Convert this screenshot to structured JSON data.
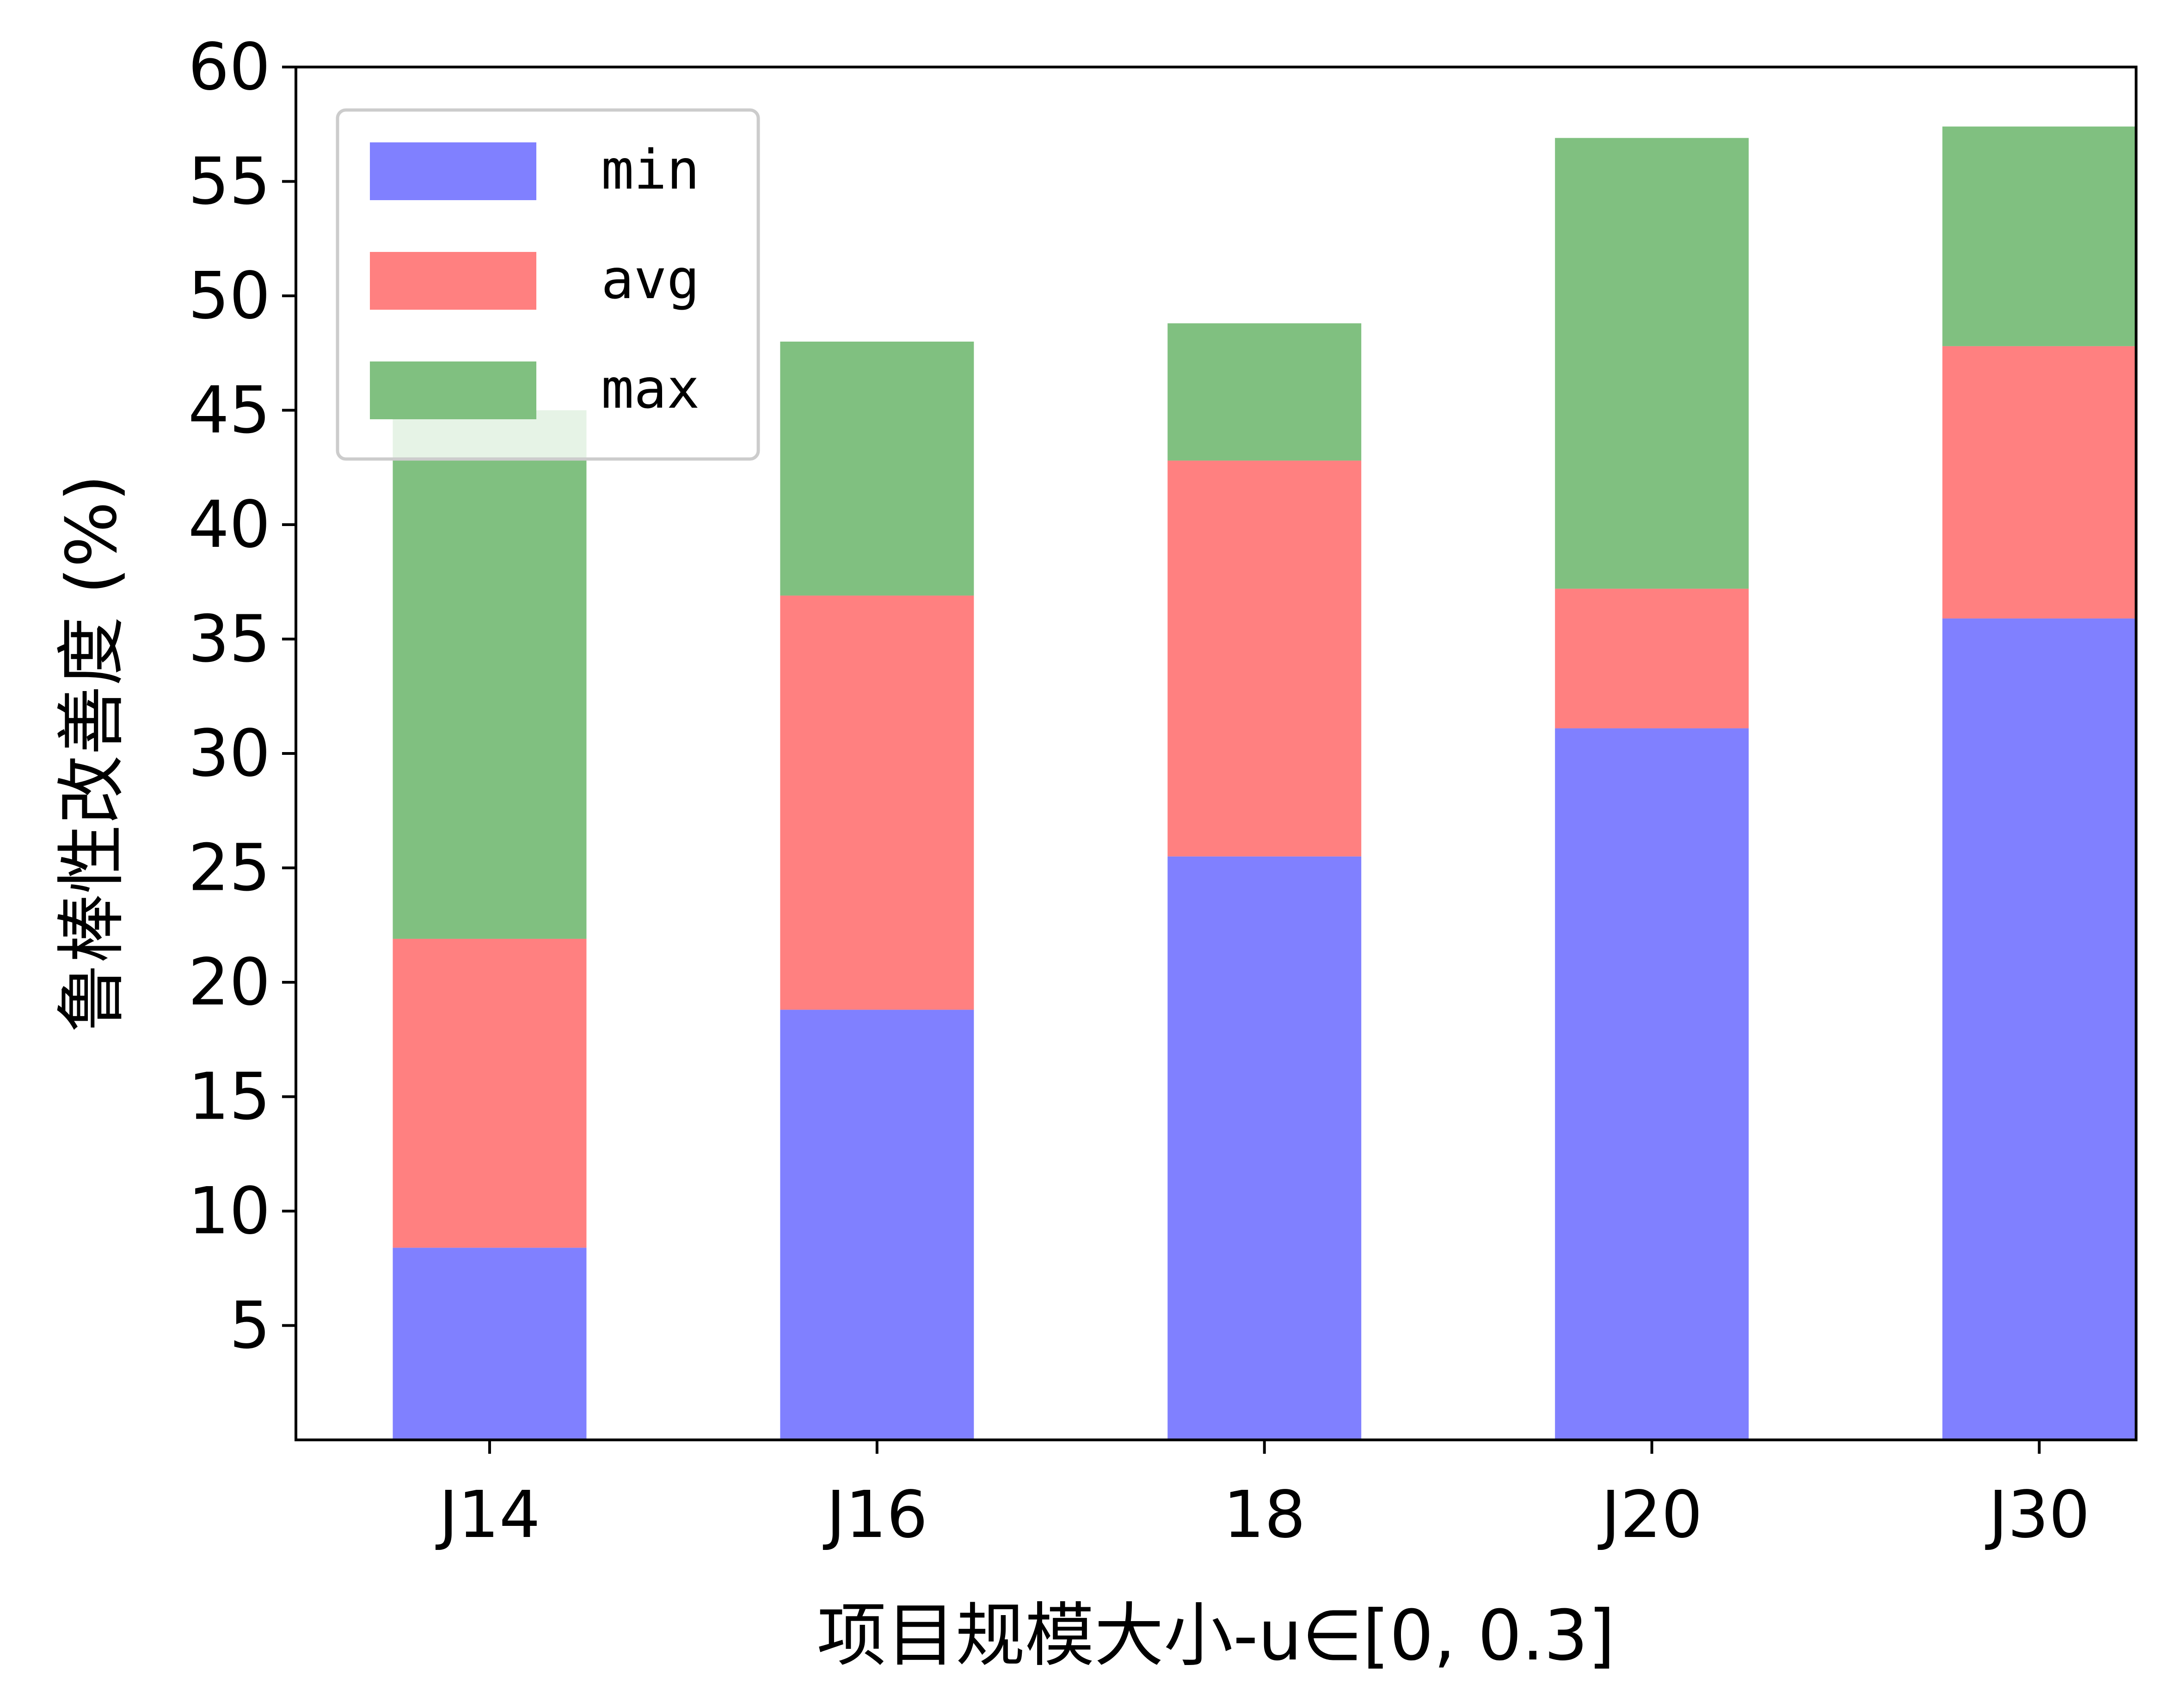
{
  "chart_data": {
    "type": "bar",
    "stacked": true,
    "categories": [
      "J14",
      "J16",
      "18",
      "J20",
      "J30"
    ],
    "series": [
      {
        "name": "min",
        "color": "#8080ff",
        "values": [
          8.4,
          18.8,
          25.5,
          31.1,
          35.9
        ]
      },
      {
        "name": "avg",
        "color": "#ff8080",
        "values": [
          13.5,
          18.1,
          17.3,
          6.1,
          11.9
        ]
      },
      {
        "name": "max",
        "color": "#80c080",
        "values": [
          23.1,
          11.1,
          6.0,
          19.7,
          9.6
        ]
      }
    ],
    "xlabel": "项目规模大小-u∈[0, 0.3]",
    "ylabel": "鲁棒性改善度 (%)",
    "ylim": [
      0,
      60
    ],
    "yticks": [
      5,
      10,
      15,
      20,
      25,
      30,
      35,
      40,
      45,
      50,
      55,
      60
    ],
    "grid": false,
    "legend": "top-left"
  }
}
